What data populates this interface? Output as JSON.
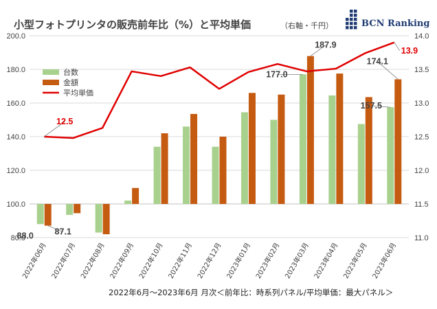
{
  "title": "小型フォトプリンタの販売前年比（%）と平均単価",
  "title_unit": "（右軸・千円）",
  "logo": {
    "text": "BCN Ranking",
    "color": "#1f3b73"
  },
  "footer": "2022年6月～2023年6月 月次＜前年比：時系列パネル/平均単価：最大パネル＞",
  "colors": {
    "units": "#a9d18e",
    "amount": "#c55a11",
    "price": "#e00000",
    "grid": "#d9d9d9"
  },
  "chart_data": {
    "type": "bar",
    "title": "小型フォトプリンタの販売前年比（%）と平均単価",
    "categories": [
      "2022年06月",
      "2022年07月",
      "2022年08月",
      "2022年09月",
      "2022年10月",
      "2022年11月",
      "2022年12月",
      "2023年01月",
      "2023年02月",
      "2023年03月",
      "2023年04月",
      "2023年05月",
      "2023年06月"
    ],
    "y_left": {
      "ticks": [
        "80.0",
        "100.0",
        "120.0",
        "140.0",
        "160.0",
        "180.0",
        "200.0"
      ],
      "ylim": [
        80,
        200
      ],
      "baseline": 100
    },
    "y_right": {
      "ticks": [
        "11.0",
        "11.5",
        "12.0",
        "12.5",
        "13.0",
        "13.5",
        "14.0"
      ],
      "ylim": [
        11.0,
        14.0
      ]
    },
    "series": [
      {
        "name": "台数",
        "kind": "bar",
        "axis": "left",
        "values": [
          88.0,
          93.5,
          83.0,
          102.0,
          134.0,
          146.0,
          134.0,
          154.5,
          150.0,
          177.0,
          164.5,
          147.5,
          157.5
        ]
      },
      {
        "name": "金額",
        "kind": "bar",
        "axis": "left",
        "values": [
          87.1,
          94.5,
          82.0,
          109.5,
          142.0,
          153.5,
          140.0,
          166.0,
          165.0,
          187.9,
          177.5,
          163.5,
          174.1
        ]
      },
      {
        "name": "平均単価",
        "kind": "line",
        "axis": "right",
        "values": [
          12.5,
          12.48,
          12.63,
          13.47,
          13.4,
          13.53,
          13.21,
          13.46,
          13.58,
          13.47,
          13.51,
          13.74,
          13.9
        ]
      }
    ],
    "data_labels": [
      {
        "text": "88.0",
        "series": "台数",
        "index": 0
      },
      {
        "text": "87.1",
        "series": "金額",
        "index": 0
      },
      {
        "text": "12.5",
        "series": "平均単価",
        "index": 0
      },
      {
        "text": "177.0",
        "series": "台数",
        "index": 9
      },
      {
        "text": "187.9",
        "series": "金額",
        "index": 9
      },
      {
        "text": "157.5",
        "series": "台数",
        "index": 12
      },
      {
        "text": "174.1",
        "series": "金額",
        "index": 12
      },
      {
        "text": "13.9",
        "series": "平均単価",
        "index": 12
      }
    ],
    "legend": {
      "position": "top-left",
      "entries": [
        "台数",
        "金額",
        "平均単価"
      ]
    },
    "grid": true
  }
}
